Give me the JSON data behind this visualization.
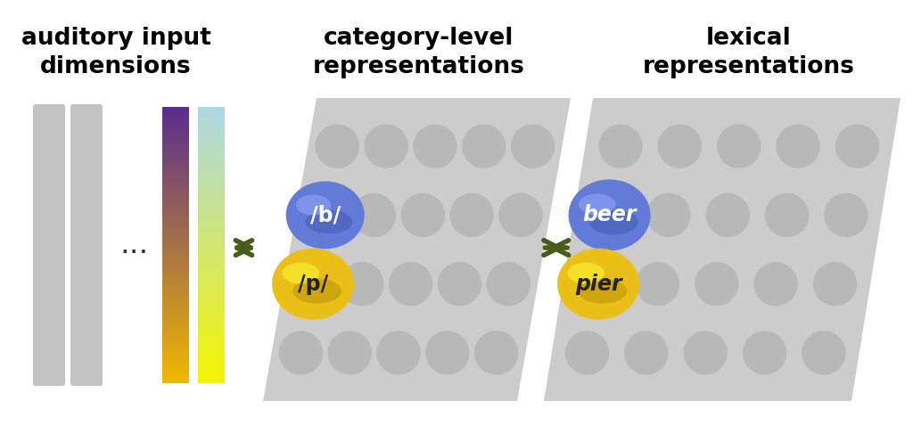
{
  "title_left": "auditory input\ndimensions",
  "title_mid": "category-level\nrepresentations",
  "title_right": "lexical\nrepresentations",
  "title_fontsize": 19,
  "bg_color": "#ffffff",
  "bar_gray": "#c2c2c2",
  "gradient_bar1_top": "#5b2d8e",
  "gradient_bar1_mid": "#9e4f6e",
  "gradient_bar1_bottom": "#f0b800",
  "gradient_bar2_top": "#add8e6",
  "gradient_bar2_bottom": "#f5f500",
  "dots_color": "#b8b8b8",
  "panel_bg": "#cccccc",
  "arrow_color": "#4a5c1a",
  "blue_top": "#8090e0",
  "blue_bot": "#4466cc",
  "yellow_top": "#ffe030",
  "yellow_bot": "#d4a000",
  "label_b": "/b/",
  "label_p": "/p/",
  "label_beer": "beer",
  "label_pier": "pier"
}
